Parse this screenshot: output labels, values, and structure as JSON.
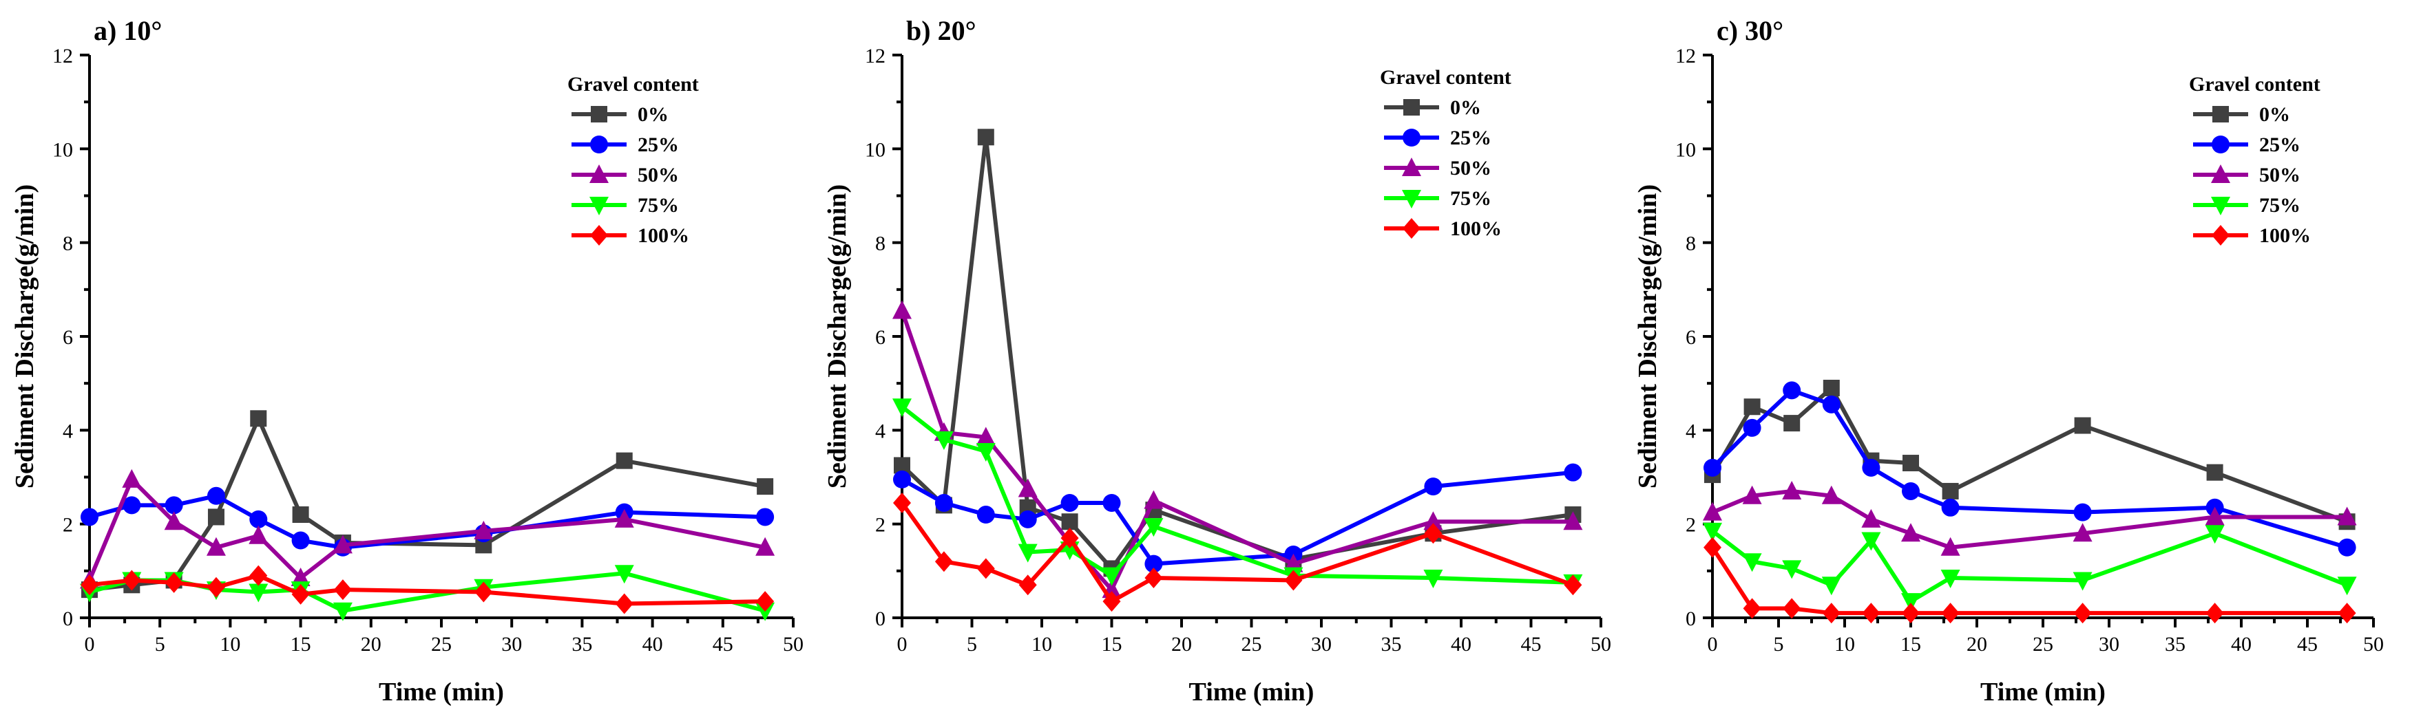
{
  "chart_data": [
    {
      "type": "line",
      "panel_label": "a) 10°",
      "xlabel": "Time (min)",
      "ylabel": "Sediment Discharge(g/min)",
      "xlim": [
        0,
        50
      ],
      "ylim": [
        0,
        12
      ],
      "xticks": [
        "0",
        "5",
        "10",
        "15",
        "20",
        "25",
        "30",
        "35",
        "40",
        "45",
        "50"
      ],
      "yticks": [
        "0",
        "2",
        "4",
        "6",
        "8",
        "10",
        "12"
      ],
      "legend_title": "Gravel content",
      "legend_position": "top-right",
      "series": [
        {
          "name": "0%",
          "marker": "square",
          "color": "#404040",
          "x": [
            0,
            3,
            6,
            9,
            12,
            15,
            18,
            28,
            38,
            48
          ],
          "y": [
            0.6,
            0.7,
            0.8,
            2.15,
            4.25,
            2.2,
            1.6,
            1.55,
            3.35,
            2.8
          ]
        },
        {
          "name": "25%",
          "marker": "circle",
          "color": "#0000ff",
          "x": [
            0,
            3,
            6,
            9,
            12,
            15,
            18,
            28,
            38,
            48
          ],
          "y": [
            2.15,
            2.4,
            2.4,
            2.6,
            2.1,
            1.65,
            1.5,
            1.8,
            2.25,
            2.15
          ]
        },
        {
          "name": "50%",
          "marker": "triangle-up",
          "color": "#990099",
          "x": [
            0,
            3,
            6,
            9,
            12,
            15,
            18,
            28,
            38,
            48
          ],
          "y": [
            0.8,
            2.95,
            2.05,
            1.5,
            1.75,
            0.85,
            1.55,
            1.85,
            2.1,
            1.5
          ]
        },
        {
          "name": "75%",
          "marker": "triangle-down",
          "color": "#00ff00",
          "x": [
            0,
            3,
            6,
            9,
            12,
            15,
            18,
            28,
            38,
            48
          ],
          "y": [
            0.55,
            0.8,
            0.8,
            0.6,
            0.55,
            0.6,
            0.15,
            0.65,
            0.95,
            0.15
          ]
        },
        {
          "name": "100%",
          "marker": "diamond",
          "color": "#ff0000",
          "x": [
            0,
            3,
            6,
            9,
            12,
            15,
            18,
            28,
            38,
            48
          ],
          "y": [
            0.7,
            0.8,
            0.75,
            0.65,
            0.9,
            0.5,
            0.6,
            0.55,
            0.3,
            0.35
          ]
        }
      ]
    },
    {
      "type": "line",
      "panel_label": "b) 20°",
      "xlabel": "Time (min)",
      "ylabel": "Sediment Discharge(g/min)",
      "xlim": [
        0,
        50
      ],
      "ylim": [
        0,
        12
      ],
      "xticks": [
        "0",
        "5",
        "10",
        "15",
        "20",
        "25",
        "30",
        "35",
        "40",
        "45",
        "50"
      ],
      "yticks": [
        "0",
        "2",
        "4",
        "6",
        "8",
        "10",
        "12"
      ],
      "legend_title": "Gravel content",
      "legend_position": "top-right",
      "series": [
        {
          "name": "0%",
          "marker": "square",
          "color": "#404040",
          "x": [
            0,
            3,
            6,
            9,
            12,
            15,
            18,
            28,
            38,
            48
          ],
          "y": [
            3.25,
            2.4,
            10.25,
            2.35,
            2.05,
            1.05,
            2.3,
            1.25,
            1.8,
            2.2
          ]
        },
        {
          "name": "25%",
          "marker": "circle",
          "color": "#0000ff",
          "x": [
            0,
            3,
            6,
            9,
            12,
            15,
            18,
            28,
            38,
            48
          ],
          "y": [
            2.95,
            2.45,
            2.2,
            2.1,
            2.45,
            2.45,
            1.15,
            1.35,
            2.8,
            3.1
          ]
        },
        {
          "name": "50%",
          "marker": "triangle-up",
          "color": "#990099",
          "x": [
            0,
            3,
            6,
            9,
            12,
            15,
            18,
            28,
            38,
            48
          ],
          "y": [
            6.55,
            3.95,
            3.85,
            2.75,
            1.6,
            0.6,
            2.5,
            1.15,
            2.05,
            2.05
          ]
        },
        {
          "name": "75%",
          "marker": "triangle-down",
          "color": "#00ff00",
          "x": [
            0,
            3,
            6,
            9,
            12,
            15,
            18,
            28,
            38,
            48
          ],
          "y": [
            4.5,
            3.8,
            3.55,
            1.4,
            1.45,
            0.9,
            1.95,
            0.9,
            0.85,
            0.75
          ]
        },
        {
          "name": "100%",
          "marker": "diamond",
          "color": "#ff0000",
          "x": [
            0,
            3,
            6,
            9,
            12,
            15,
            18,
            28,
            38,
            48
          ],
          "y": [
            2.45,
            1.2,
            1.05,
            0.7,
            1.7,
            0.35,
            0.85,
            0.8,
            1.8,
            0.7
          ]
        }
      ]
    },
    {
      "type": "line",
      "panel_label": "c) 30°",
      "xlabel": "Time (min)",
      "ylabel": "Sediment Discharge(g/min)",
      "xlim": [
        0,
        50
      ],
      "ylim": [
        0,
        12
      ],
      "xticks": [
        "0",
        "5",
        "10",
        "15",
        "20",
        "25",
        "30",
        "35",
        "40",
        "45",
        "50"
      ],
      "yticks": [
        "0",
        "2",
        "4",
        "6",
        "8",
        "10",
        "12"
      ],
      "legend_title": "Gravel content",
      "legend_position": "top-right",
      "series": [
        {
          "name": "0%",
          "marker": "square",
          "color": "#404040",
          "x": [
            0,
            3,
            6,
            9,
            12,
            15,
            18,
            28,
            38,
            48
          ],
          "y": [
            3.05,
            4.5,
            4.15,
            4.9,
            3.35,
            3.3,
            2.7,
            4.1,
            3.1,
            2.05
          ]
        },
        {
          "name": "25%",
          "marker": "circle",
          "color": "#0000ff",
          "x": [
            0,
            3,
            6,
            9,
            12,
            15,
            18,
            28,
            38,
            48
          ],
          "y": [
            3.2,
            4.05,
            4.85,
            4.55,
            3.2,
            2.7,
            2.35,
            2.25,
            2.35,
            1.5
          ]
        },
        {
          "name": "50%",
          "marker": "triangle-up",
          "color": "#990099",
          "x": [
            0,
            3,
            6,
            9,
            12,
            15,
            18,
            28,
            38,
            48
          ],
          "y": [
            2.25,
            2.6,
            2.7,
            2.6,
            2.1,
            1.8,
            1.5,
            1.8,
            2.15,
            2.15
          ]
        },
        {
          "name": "75%",
          "marker": "triangle-down",
          "color": "#00ff00",
          "x": [
            0,
            3,
            6,
            9,
            12,
            15,
            18,
            28,
            38,
            48
          ],
          "y": [
            1.85,
            1.2,
            1.05,
            0.7,
            1.65,
            0.35,
            0.85,
            0.8,
            1.8,
            0.7
          ]
        },
        {
          "name": "100%",
          "marker": "diamond",
          "color": "#ff0000",
          "x": [
            0,
            3,
            6,
            9,
            12,
            15,
            18,
            28,
            38,
            48
          ],
          "y": [
            1.5,
            0.2,
            0.2,
            0.1,
            0.1,
            0.1,
            0.1,
            0.1,
            0.1,
            0.1
          ]
        }
      ]
    }
  ]
}
